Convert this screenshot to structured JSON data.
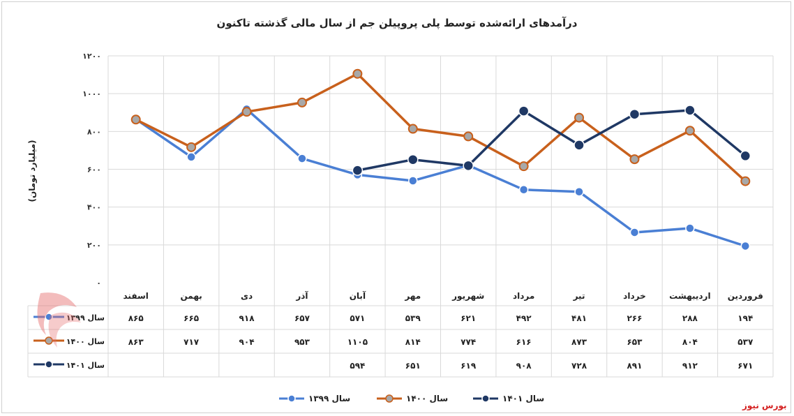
{
  "watermark": "بورس نیوز",
  "chart_data": {
    "type": "line",
    "title": "درآمدهای ارائه‌شده توسط پلی پروپیلن جم از سال مالی گذشته تاکنون",
    "ylabel": "(میلیارد تومان)",
    "xlabel": "",
    "ylim": [
      0,
      1200
    ],
    "yticks": [
      0,
      200,
      400,
      600,
      800,
      1000,
      1200
    ],
    "ytick_labels": [
      "۰",
      "۲۰۰",
      "۴۰۰",
      "۶۰۰",
      "۸۰۰",
      "۱۰۰۰",
      "۱۲۰۰"
    ],
    "grid": true,
    "legend": "bottom",
    "categories": [
      "فروردین",
      "اردیبهشت",
      "خرداد",
      "تیر",
      "مرداد",
      "شهریور",
      "مهر",
      "آبان",
      "آذر",
      "دی",
      "بهمن",
      "اسفند"
    ],
    "series": [
      {
        "name": "سال ۱۳۹۹",
        "color": "#4a7fd4",
        "values": [
          194,
          288,
          266,
          481,
          492,
          621,
          539,
          571,
          657,
          918,
          665,
          865
        ],
        "labels": [
          "۱۹۴",
          "۲۸۸",
          "۲۶۶",
          "۴۸۱",
          "۴۹۲",
          "۶۲۱",
          "۵۳۹",
          "۵۷۱",
          "۶۵۷",
          "۹۱۸",
          "۶۶۵",
          "۸۶۵"
        ]
      },
      {
        "name": "سال ۱۴۰۰",
        "color": "#c8601c",
        "values": [
          537,
          804,
          653,
          873,
          616,
          774,
          814,
          1105,
          953,
          904,
          717,
          863
        ],
        "labels": [
          "۵۳۷",
          "۸۰۴",
          "۶۵۳",
          "۸۷۳",
          "۶۱۶",
          "۷۷۴",
          "۸۱۴",
          "۱۱۰۵",
          "۹۵۳",
          "۹۰۴",
          "۷۱۷",
          "۸۶۳"
        ]
      },
      {
        "name": "سال ۱۴۰۱",
        "color": "#1f3864",
        "values": [
          671,
          912,
          891,
          728,
          908,
          619,
          651,
          594,
          null,
          null,
          null,
          null
        ],
        "labels": [
          "۶۷۱",
          "۹۱۲",
          "۸۹۱",
          "۷۲۸",
          "۹۰۸",
          "۶۱۹",
          "۶۵۱",
          "۵۹۴",
          "",
          "",
          "",
          ""
        ]
      }
    ]
  }
}
